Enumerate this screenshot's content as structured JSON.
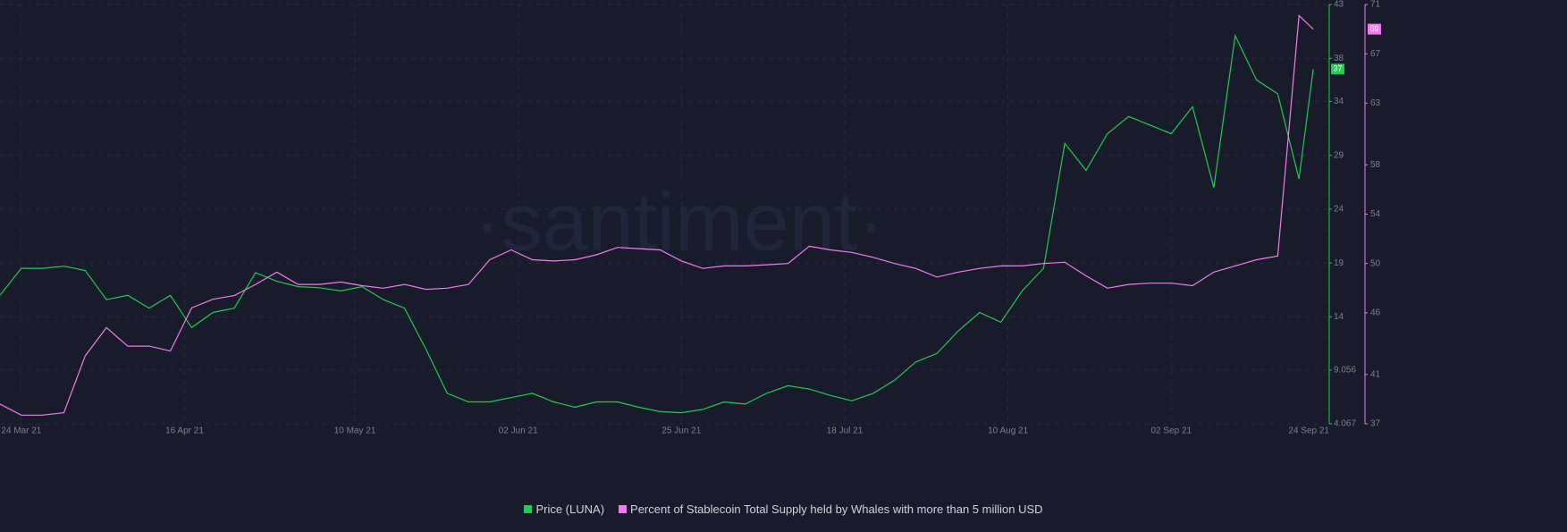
{
  "chart_data": {
    "type": "line",
    "watermark": "·santiment·",
    "x": [
      "2021-03-21",
      "2021-03-24",
      "2021-03-27",
      "2021-03-30",
      "2021-04-02",
      "2021-04-05",
      "2021-04-08",
      "2021-04-11",
      "2021-04-14",
      "2021-04-17",
      "2021-04-20",
      "2021-04-23",
      "2021-04-26",
      "2021-04-29",
      "2021-05-02",
      "2021-05-05",
      "2021-05-08",
      "2021-05-11",
      "2021-05-14",
      "2021-05-17",
      "2021-05-20",
      "2021-05-23",
      "2021-05-26",
      "2021-05-29",
      "2021-06-01",
      "2021-06-04",
      "2021-06-07",
      "2021-06-10",
      "2021-06-13",
      "2021-06-16",
      "2021-06-19",
      "2021-06-22",
      "2021-06-25",
      "2021-06-28",
      "2021-07-01",
      "2021-07-04",
      "2021-07-07",
      "2021-07-10",
      "2021-07-13",
      "2021-07-16",
      "2021-07-19",
      "2021-07-22",
      "2021-07-25",
      "2021-07-28",
      "2021-07-31",
      "2021-08-03",
      "2021-08-06",
      "2021-08-09",
      "2021-08-12",
      "2021-08-15",
      "2021-08-18",
      "2021-08-21",
      "2021-08-24",
      "2021-08-27",
      "2021-08-30",
      "2021-09-02",
      "2021-09-05",
      "2021-09-08",
      "2021-09-11",
      "2021-09-14",
      "2021-09-17",
      "2021-09-20",
      "2021-09-22"
    ],
    "series": [
      {
        "name": "Price (LUNA)",
        "color": "#26c953",
        "values": [
          16.0,
          18.5,
          18.5,
          18.7,
          18.3,
          15.6,
          16.0,
          14.8,
          16.0,
          13.0,
          14.4,
          14.8,
          18.1,
          17.3,
          16.8,
          16.7,
          16.4,
          16.8,
          15.6,
          14.8,
          11.0,
          6.9,
          6.1,
          6.1,
          6.5,
          6.9,
          6.1,
          5.6,
          6.1,
          6.1,
          5.6,
          5.2,
          5.1,
          5.4,
          6.1,
          5.9,
          6.9,
          7.6,
          7.3,
          6.7,
          6.2,
          6.9,
          8.1,
          9.8,
          10.6,
          12.7,
          14.4,
          13.5,
          16.4,
          18.5,
          30.1,
          27.6,
          31.0,
          32.6,
          31.8,
          31.0,
          33.5,
          26.0,
          40.1,
          36.0,
          34.7,
          26.8,
          37
        ]
      },
      {
        "name": "Percent of Stablecoin Total Supply held by Whales with more than 5 million USD",
        "color": "#f47bf1",
        "axis": "y2",
        "values": [
          38.6,
          37.7,
          37.7,
          37.9,
          42.5,
          44.8,
          43.3,
          43.3,
          42.9,
          46.4,
          47.1,
          47.4,
          48.3,
          49.3,
          48.3,
          48.3,
          48.5,
          48.2,
          48.0,
          48.3,
          47.9,
          48.0,
          48.3,
          50.3,
          51.1,
          50.3,
          50.2,
          50.3,
          50.7,
          51.3,
          51.2,
          51.1,
          50.2,
          49.6,
          49.8,
          49.8,
          49.9,
          50.0,
          51.4,
          51.1,
          50.9,
          50.5,
          50.0,
          49.6,
          48.9,
          49.3,
          49.6,
          49.8,
          49.8,
          50.0,
          50.1,
          49.0,
          48.0,
          48.3,
          48.4,
          48.4,
          48.2,
          49.3,
          49.8,
          50.3,
          50.6,
          70.1,
          69
        ]
      }
    ],
    "xlim": [
      "2021-03-21",
      "2021-09-24"
    ],
    "xticks": [
      {
        "value": "2021-03-24",
        "label": "24 Mar 21"
      },
      {
        "value": "2021-04-16",
        "label": "16 Apr 21"
      },
      {
        "value": "2021-05-10",
        "label": "10 May 21"
      },
      {
        "value": "2021-06-02",
        "label": "02 Jun 21"
      },
      {
        "value": "2021-06-25",
        "label": "25 Jun 21"
      },
      {
        "value": "2021-07-18",
        "label": "18 Jul 21"
      },
      {
        "value": "2021-08-10",
        "label": "10 Aug 21"
      },
      {
        "value": "2021-09-02",
        "label": "02 Sep 21"
      },
      {
        "value": "2021-09-24",
        "label": "24 Sep 21"
      }
    ],
    "ylim": [
      4.067,
      43
    ],
    "yticks": [
      4.067,
      9.056,
      14,
      19,
      24,
      29,
      34,
      38,
      43
    ],
    "y2lim": [
      37,
      71
    ],
    "y2ticks": [
      37,
      41,
      46,
      50,
      54,
      58,
      63,
      67,
      71
    ],
    "grid": true
  }
}
